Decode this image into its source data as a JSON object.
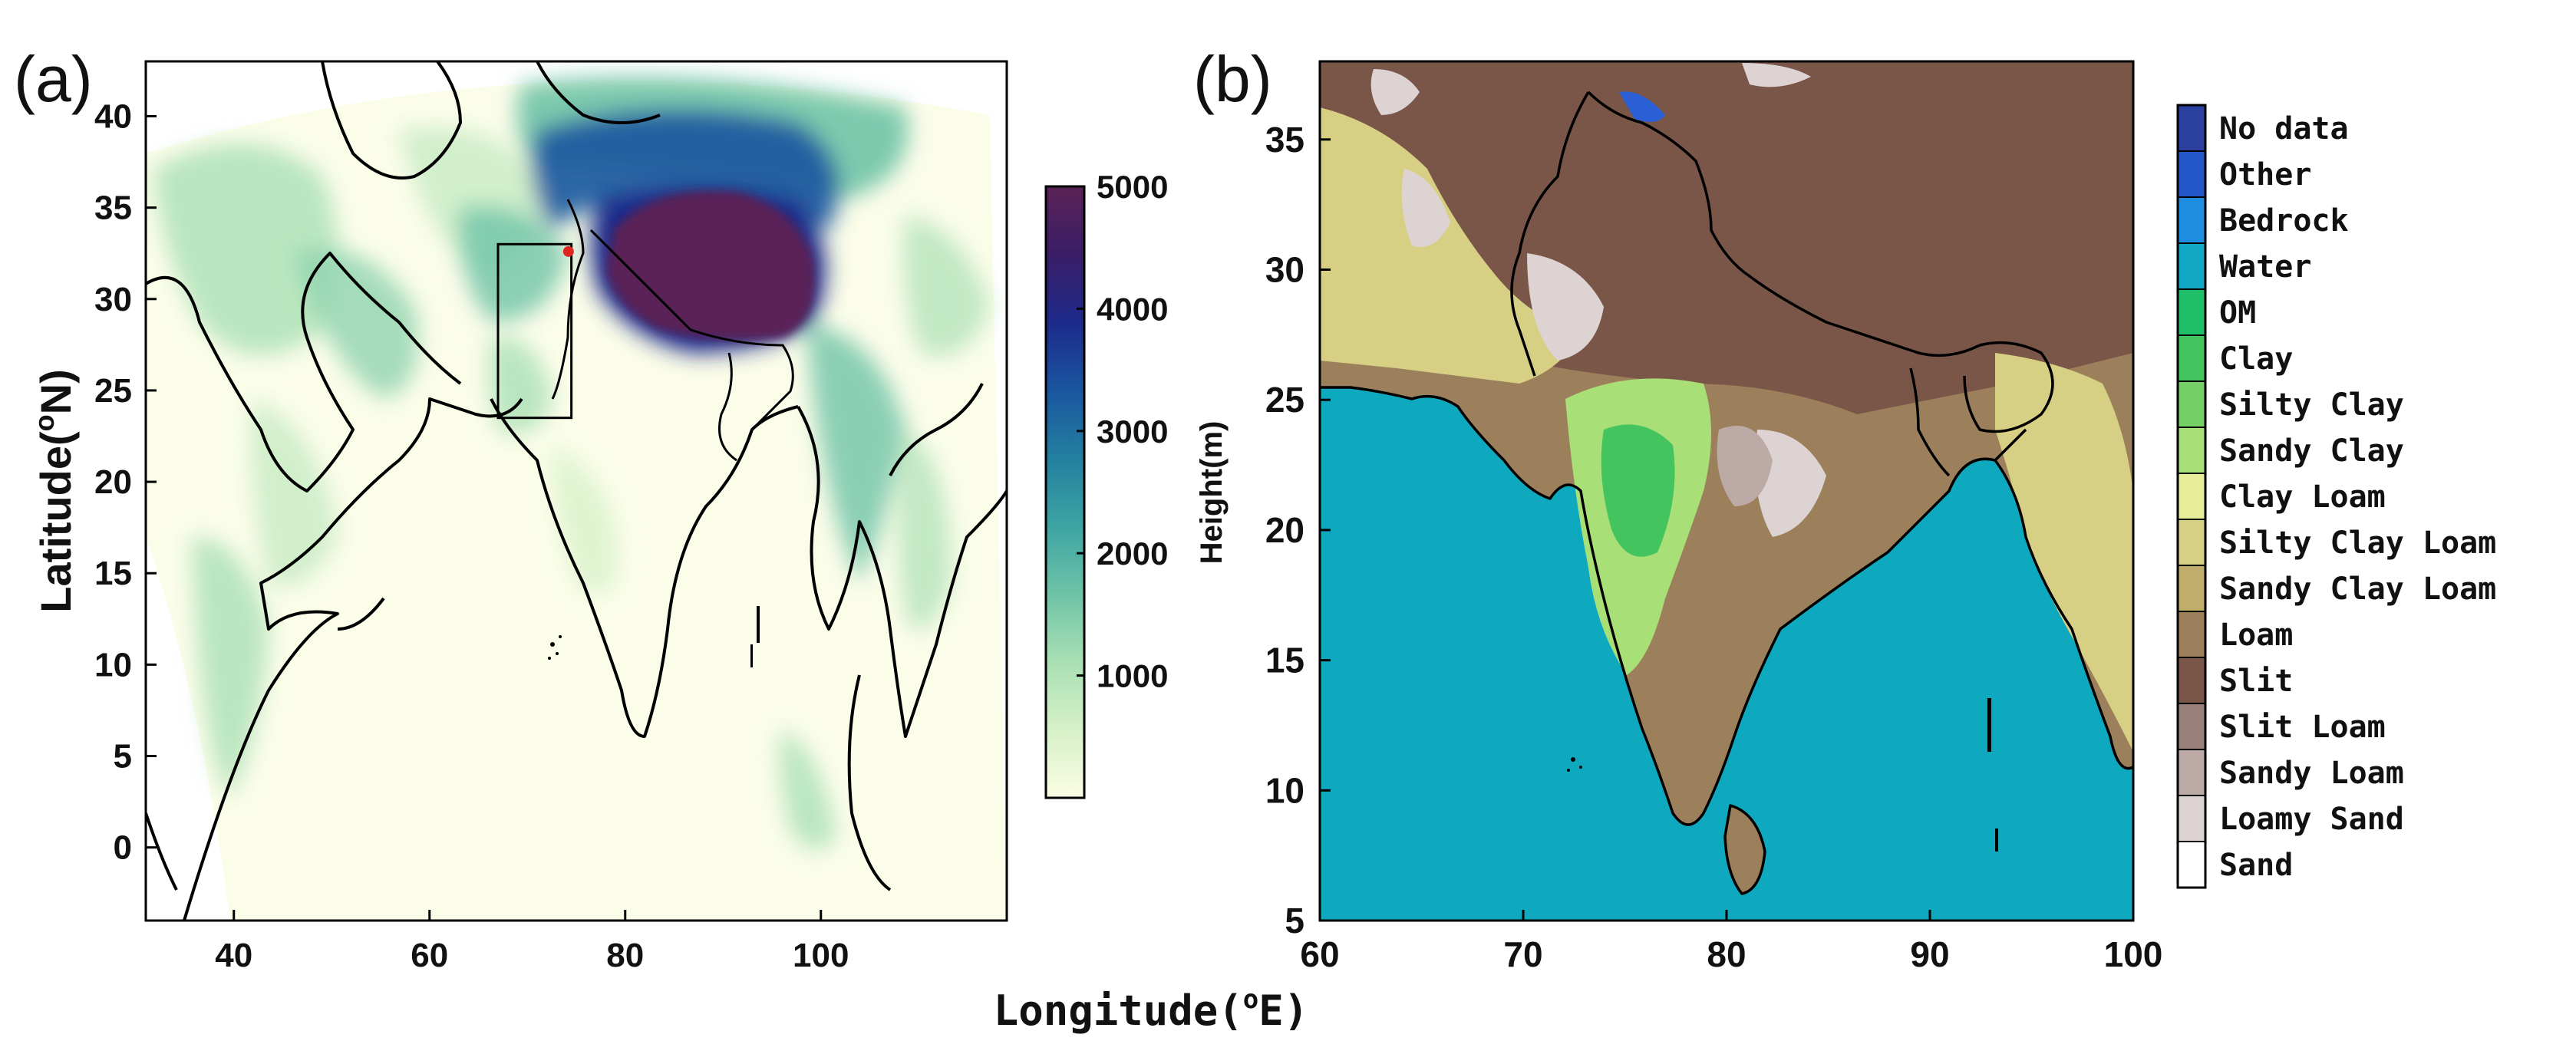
{
  "panel_labels": {
    "a": "(a)",
    "b": "(b)"
  },
  "shared_xlabel": "Longitude(°E)",
  "shared_xlabel_sup": "o",
  "panel_a": {
    "ylabel": "Latitude(",
    "ylabel_sup": "o",
    "ylabel_tail": "N)",
    "xlim": [
      31,
      119
    ],
    "ylim": [
      -4,
      43
    ],
    "xticks": [
      40,
      60,
      80,
      100
    ],
    "yticks": [
      0,
      5,
      10,
      15,
      20,
      25,
      30,
      35,
      40
    ],
    "study_box": {
      "lon": [
        67,
        74.5
      ],
      "lat": [
        23.5,
        33
      ]
    },
    "marker": {
      "lon": 74.2,
      "lat": 32.6,
      "color": "#e0261f"
    },
    "colorbar": {
      "label": "Height(m)",
      "range": [
        0,
        5000
      ],
      "ticks": [
        1000,
        2000,
        3000,
        4000,
        5000
      ],
      "stops": [
        "#fbfde4",
        "#d6f1c8",
        "#a9e0b4",
        "#6ec3a7",
        "#3ea4a3",
        "#237f9f",
        "#1a56a0",
        "#1d2a8a",
        "#3a1d66",
        "#5a2356"
      ]
    }
  },
  "panel_b": {
    "xlim": [
      60,
      100
    ],
    "ylim": [
      5,
      38
    ],
    "xticks": [
      60,
      70,
      80,
      90,
      100
    ],
    "yticks": [
      5,
      10,
      15,
      20,
      25,
      30,
      35
    ],
    "legend": [
      {
        "label": "No data",
        "color": "#2a3f9e"
      },
      {
        "label": "Other",
        "color": "#2356c7"
      },
      {
        "label": "Bedrock",
        "color": "#1f8de0"
      },
      {
        "label": "Water",
        "color": "#12a7c5"
      },
      {
        "label": "OM",
        "color": "#1fbf6a"
      },
      {
        "label": "Clay",
        "color": "#44c45e"
      },
      {
        "label": "Silty Clay",
        "color": "#75d167"
      },
      {
        "label": "Sandy Clay",
        "color": "#a9df77"
      },
      {
        "label": "Clay Loam",
        "color": "#e8ed9a"
      },
      {
        "label": "Silty Clay Loam",
        "color": "#d7cf83"
      },
      {
        "label": "Sandy Clay Loam",
        "color": "#c0ad6c"
      },
      {
        "label": "Loam",
        "color": "#9c805c"
      },
      {
        "label": "Slit",
        "color": "#7a5648"
      },
      {
        "label": "Slit Loam",
        "color": "#9a807a"
      },
      {
        "label": "Sandy Loam",
        "color": "#bcaaa6"
      },
      {
        "label": "Loamy Sand",
        "color": "#ddd3d2"
      },
      {
        "label": "Sand",
        "color": "#ffffff"
      }
    ],
    "colors": {
      "sea": "#0fa9bf",
      "loam": "#9c805c",
      "slit": "#7a5648",
      "sandy_clay_loam": "#c9b06a",
      "silty_clay_loam": "#d7cf83",
      "sandy_clay": "#a9df77",
      "clay": "#44c45e",
      "loamy_sand": "#ddd3d2",
      "sandy_loam": "#bcaaa6",
      "bedrock": "#2a5fd6"
    }
  }
}
